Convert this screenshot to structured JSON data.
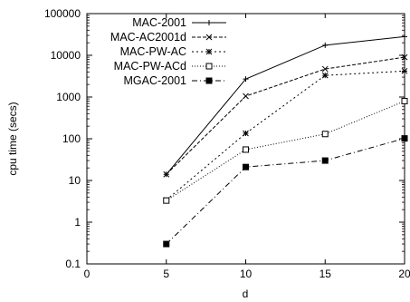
{
  "chart_data": {
    "type": "line",
    "xlabel": "d",
    "ylabel": "cpu time (secs)",
    "x": [
      5,
      10,
      15,
      20
    ],
    "xlim": [
      0,
      20
    ],
    "xticks": [
      "0",
      "5",
      "10",
      "15",
      "20"
    ],
    "ylim": [
      0.1,
      100000
    ],
    "yscale": "log",
    "yticks": [
      "0.1",
      "1",
      "10",
      "100",
      "1000",
      "10000",
      "100000"
    ],
    "legend_position": "top-left",
    "grid": false,
    "series": [
      {
        "name": "MAC-2001",
        "marker": "plus",
        "dash": "",
        "values": [
          14,
          2700,
          17500,
          28000
        ]
      },
      {
        "name": "MAC-AC2001d",
        "marker": "cross",
        "dash": "4,2",
        "values": [
          14,
          1050,
          4700,
          9000
        ]
      },
      {
        "name": "MAC-PW-AC",
        "marker": "star",
        "dash": "2,3",
        "values": [
          3.4,
          135,
          3300,
          4200
        ]
      },
      {
        "name": "MAC-PW-ACd",
        "marker": "open-square",
        "dash": "1,2",
        "values": [
          3.3,
          55,
          130,
          800
        ]
      },
      {
        "name": "MGAC-2001",
        "marker": "filled-square",
        "dash": "6,3,1,3",
        "values": [
          0.3,
          21,
          30,
          102
        ]
      }
    ]
  }
}
